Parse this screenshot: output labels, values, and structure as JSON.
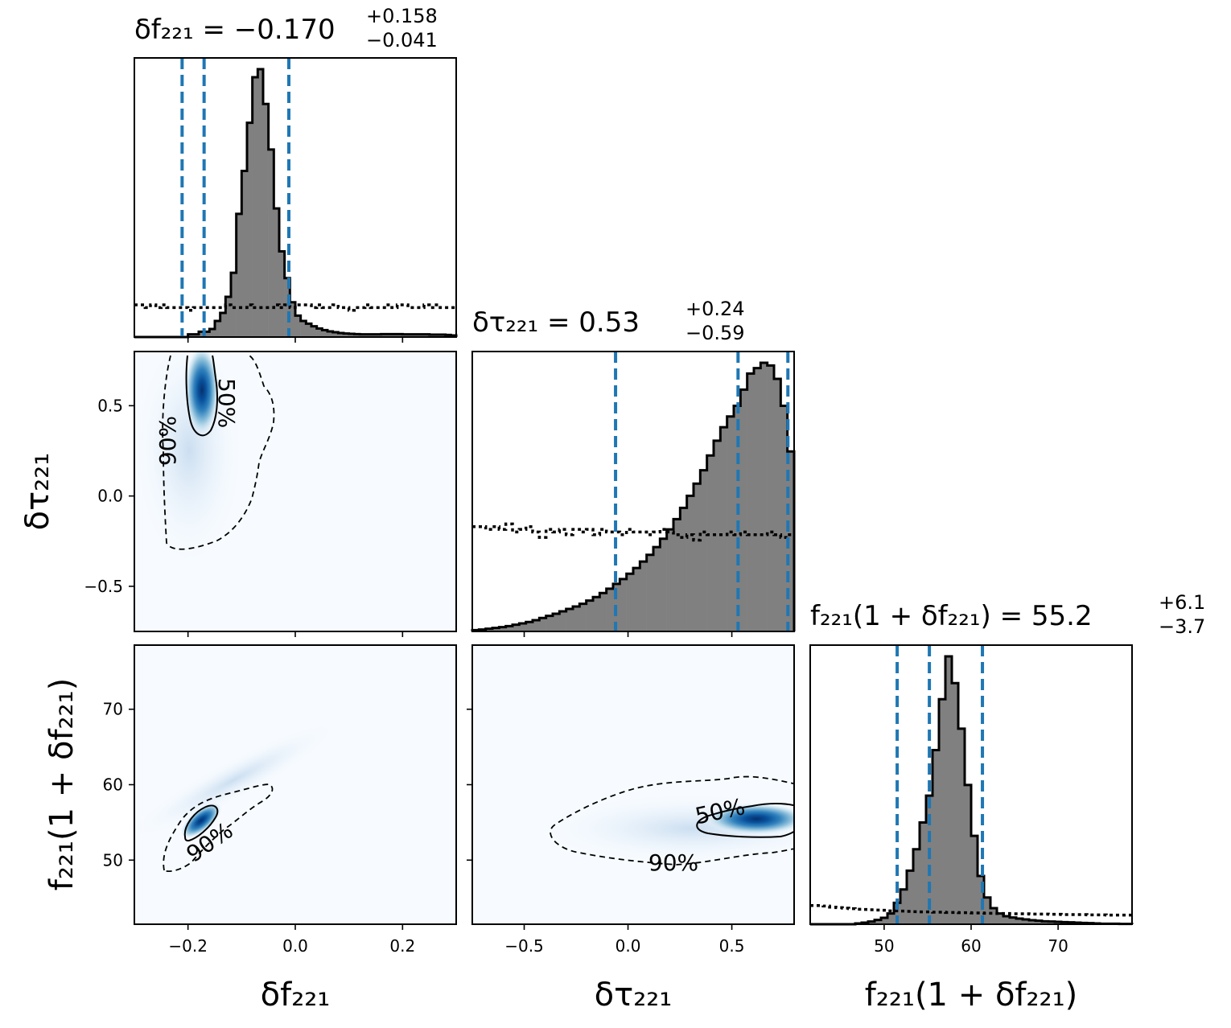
{
  "chart_data": {
    "type": "corner",
    "colors": {
      "quantile": "#1f77b4",
      "hist_fill": "#808080",
      "line": "#000000",
      "density": "Blues"
    },
    "parameters": [
      {
        "key": "df",
        "label": "δf₂₂₁",
        "range": [
          -0.3,
          0.3
        ]
      },
      {
        "key": "dtau",
        "label": "δτ₂₂₁",
        "range": [
          -0.75,
          0.8
        ]
      },
      {
        "key": "f",
        "label": "f₂₂₁(1 + δf₂₂₁)",
        "range": [
          41.5,
          78.5
        ]
      }
    ],
    "titles": [
      {
        "lhs": "δf₂₂₁ = −0.170",
        "sup": "+0.158",
        "sub": "−0.041"
      },
      {
        "lhs": "δτ₂₂₁ = 0.53",
        "sup": "+0.24",
        "sub": "−0.59"
      },
      {
        "lhs": "f₂₂₁(1 + δf₂₂₁) = 55.2",
        "sup": "+6.1",
        "sub": "−3.7"
      }
    ],
    "xlabels": [
      "δf₂₂₁",
      "δτ₂₂₁",
      "f₂₂₁(1 + δf₂₂₁)"
    ],
    "ylabels": [
      "δτ₂₂₁",
      "f₂₂₁(1 + δf₂₂₁)"
    ],
    "ticks": {
      "df": [
        {
          "v": -0.2,
          "label": "−0.2"
        },
        {
          "v": 0.0,
          "label": "0.0"
        },
        {
          "v": 0.2,
          "label": "0.2"
        }
      ],
      "dtau": [
        {
          "v": -0.5,
          "label": "−0.5"
        },
        {
          "v": 0.0,
          "label": "0.0"
        },
        {
          "v": 0.5,
          "label": "0.5"
        }
      ],
      "f": [
        {
          "v": 50,
          "label": "50"
        },
        {
          "v": 60,
          "label": "60"
        },
        {
          "v": 70,
          "label": "70"
        }
      ]
    },
    "quantiles": {
      "df": [
        -0.211,
        -0.17,
        -0.012
      ],
      "dtau": [
        -0.06,
        0.53,
        0.77
      ],
      "f": [
        51.5,
        55.2,
        61.3
      ]
    },
    "histograms": {
      "df": {
        "range": [
          -0.3,
          0.3
        ],
        "posterior": [
          0,
          0,
          0,
          0,
          0,
          0,
          0,
          0,
          0,
          0,
          1,
          1,
          2,
          2,
          3,
          6,
          9,
          15,
          24,
          46,
          62,
          80,
          97,
          100,
          87,
          70,
          48,
          32,
          22,
          13,
          8,
          6,
          5,
          4,
          3.2,
          2.6,
          2.1,
          1.8,
          1.5,
          1.3,
          1.2,
          1.1,
          1.0,
          1.0,
          1.0,
          1.0,
          1.1,
          1.1,
          1.1,
          1.1,
          1.0,
          1.0,
          1.0,
          1.0,
          1.0,
          0.9,
          0.9,
          0.9,
          0.8,
          0.6
        ],
        "prior": [
          12,
          12,
          11,
          12,
          11,
          12,
          11,
          11,
          11,
          11,
          10,
          11,
          11,
          11,
          11,
          11,
          11,
          12,
          11,
          11,
          11,
          12,
          11,
          11,
          11,
          11,
          12,
          11,
          12,
          11,
          12,
          12,
          12,
          11,
          12,
          11,
          11,
          12,
          11,
          11,
          10,
          11,
          11,
          12,
          11,
          11,
          11,
          12,
          11,
          12,
          12,
          11,
          11,
          11,
          12,
          11,
          12,
          11,
          11,
          11
        ]
      },
      "dtau": {
        "range": [
          -0.75,
          0.8
        ],
        "posterior": [
          0.5,
          0.7,
          1.0,
          1.3,
          1.6,
          2.0,
          2.5,
          3.0,
          3.5,
          4.2,
          5.0,
          5.8,
          6.6,
          7.5,
          8.4,
          9.3,
          10.3,
          11.5,
          12.8,
          14.3,
          15.9,
          17.7,
          19.5,
          21.5,
          23.6,
          26.0,
          28.5,
          31.4,
          34.5,
          38.0,
          41.8,
          46.0,
          50.5,
          55.0,
          60.0,
          65.5,
          71.0,
          76.0,
          80.0,
          84.0,
          90.0,
          96.0,
          98.0,
          100.0,
          99.0,
          94.0,
          84.0,
          67.0
        ],
        "prior": [
          39,
          39,
          38,
          39,
          38,
          40,
          37,
          38,
          39,
          37,
          35,
          38,
          37,
          38,
          36,
          38,
          37,
          38,
          36,
          38,
          37,
          37,
          36,
          38,
          37,
          37,
          36,
          37,
          38,
          37,
          36,
          35,
          36,
          34,
          37,
          36,
          36,
          36,
          37,
          36,
          37,
          36,
          36,
          36,
          37,
          36,
          35,
          36
        ]
      },
      "f": {
        "range": [
          41.5,
          78.5
        ],
        "posterior": [
          0,
          0,
          0,
          0,
          0,
          0,
          0,
          0.3,
          0.6,
          1.0,
          1.6,
          2.4,
          4,
          8,
          13,
          20,
          28,
          38,
          48,
          65,
          84,
          100,
          90,
          73,
          52,
          33,
          18,
          10,
          6,
          4,
          3,
          2.5,
          2.1,
          1.8,
          1.5,
          1.3,
          1.1,
          1.0,
          0.9,
          0.8,
          0.7,
          0.6,
          0.5,
          0.4,
          0.3,
          0.2,
          0.2,
          0.2,
          0.1,
          0.1
        ],
        "prior": [
          7,
          7,
          6.8,
          6.4,
          6.2,
          6.0,
          5.8,
          5.6,
          5.5,
          5.4,
          5.3,
          5.2,
          5.0,
          5.0,
          4.9,
          4.8,
          4.7,
          4.6,
          4.6,
          4.5,
          4.5,
          4.4,
          4.4,
          4.3,
          4.3,
          4.2,
          4.2,
          4.1,
          4.1,
          4.0,
          4.0,
          3.9,
          3.9,
          3.9,
          3.8,
          3.8,
          3.8,
          3.7,
          3.7,
          3.6,
          3.6,
          3.6,
          3.6,
          3.5,
          3.5,
          3.5,
          3.4,
          3.4,
          3.4,
          3.4
        ]
      }
    },
    "contour_labels": [
      "50%",
      "90%"
    ],
    "density_peaks": {
      "df_dtau": {
        "x": -0.175,
        "y": 0.65
      },
      "df_f": {
        "x": -0.175,
        "y": 55.2
      },
      "dtau_f": {
        "x": 0.7,
        "y": 55.5
      }
    }
  }
}
